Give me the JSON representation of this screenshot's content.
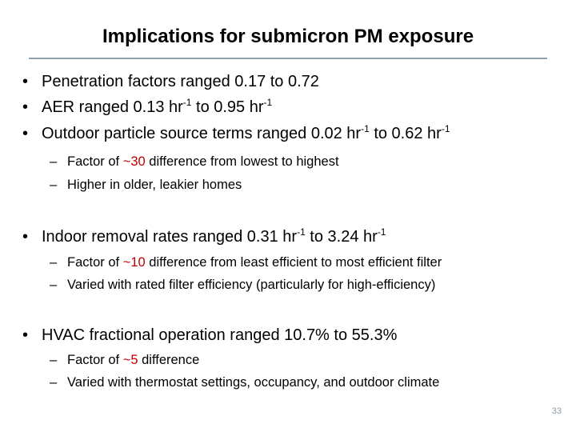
{
  "slide": {
    "title": "Implications for submicron PM exposure",
    "page_number": "33",
    "highlight_color": "#c00000",
    "bullet_glyph": "•",
    "dash_glyph": "–",
    "bullets": {
      "penetration": "Penetration factors ranged 0.17 to 0.72",
      "aer": {
        "a": "AER ranged 0.13 hr",
        "sup1": "-1",
        "b": " to 0.95 hr",
        "sup2": "-1"
      },
      "outdoor": {
        "a": "Outdoor particle source terms ranged 0.02 hr",
        "sup1": "-1",
        "b": " to 0.62 hr",
        "sup2": "-1"
      },
      "outdoor_sub1": {
        "a": "Factor of ",
        "hl": "~30",
        "b": " difference from lowest to highest"
      },
      "outdoor_sub2": "Higher in older, leakier homes",
      "removal": {
        "a": "Indoor removal rates ranged 0.31 hr",
        "sup1": "-1",
        "b": " to 3.24 hr",
        "sup2": "-1"
      },
      "removal_sub1": {
        "a": "Factor of ",
        "hl": "~10",
        "b": " difference from least efficient to most efficient filter"
      },
      "removal_sub2": "Varied with rated filter efficiency (particularly for high-efficiency)",
      "hvac": "HVAC fractional operation ranged 10.7% to 55.3%",
      "hvac_sub1": {
        "a": "Factor of ",
        "hl": "~5",
        "b": " difference"
      },
      "hvac_sub2": "Varied with thermostat settings, occupancy, and outdoor climate"
    }
  }
}
